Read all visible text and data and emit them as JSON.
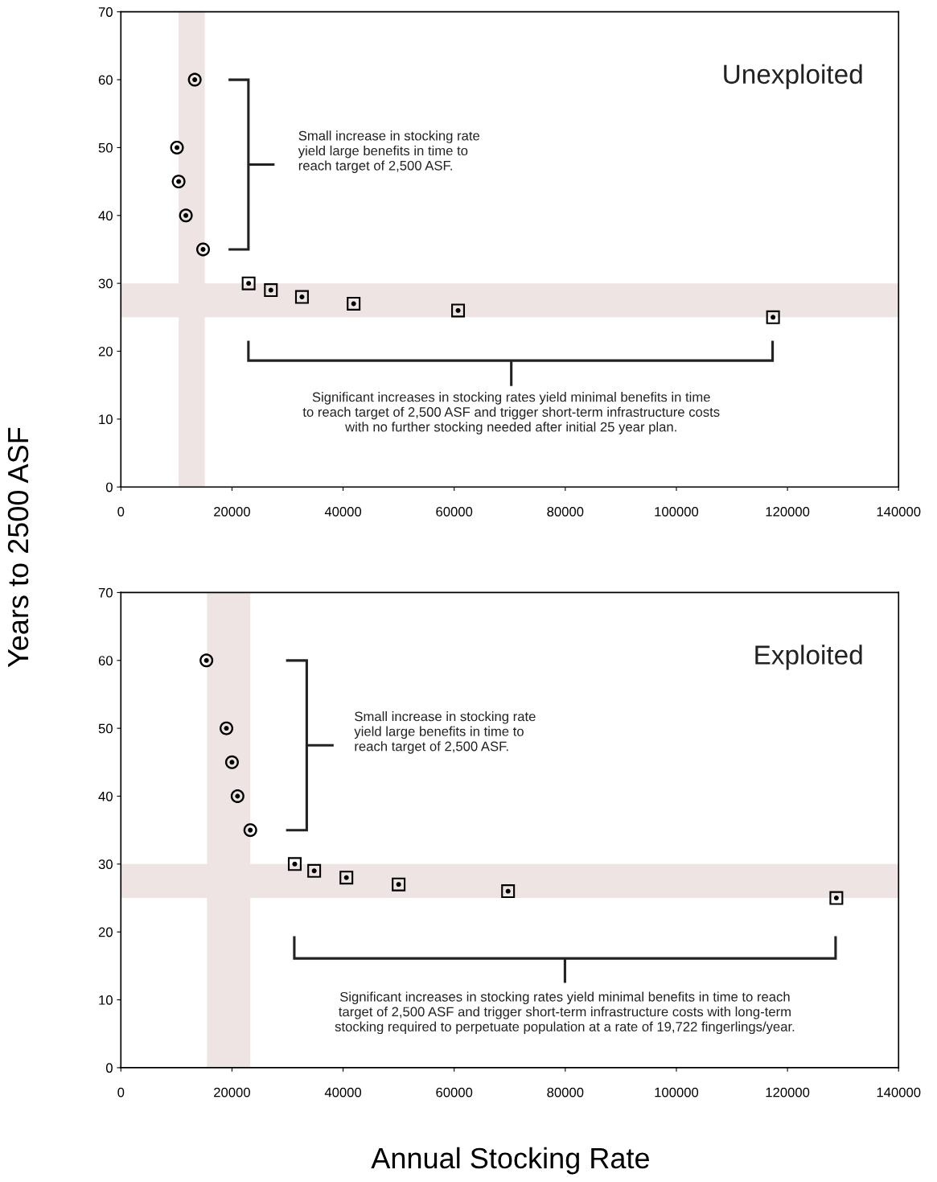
{
  "chart_data": [
    {
      "type": "scatter",
      "ylabel": "Years to 2500 ASF",
      "xlim": [
        0,
        140000
      ],
      "ylim": [
        0,
        70
      ],
      "xticks": [
        0,
        20000,
        40000,
        60000,
        80000,
        100000,
        120000,
        140000
      ],
      "yticks": [
        0,
        10,
        20,
        30,
        40,
        50,
        60,
        70
      ],
      "grid": false,
      "legend": false,
      "series": [
        {
          "color": "#000000",
          "marker": "circle",
          "x": [
            13300,
            10100,
            10400,
            11700,
            14800
          ],
          "values": [
            60,
            50,
            45,
            40,
            35
          ]
        },
        {
          "color": "#000000",
          "marker": "square",
          "x": [
            23000,
            27000,
            32600,
            41900,
            60700,
            117400
          ],
          "values": [
            30,
            29,
            28,
            27,
            26,
            25
          ]
        }
      ],
      "bands": [
        {
          "axis": "x",
          "from": 10400,
          "to": 15100,
          "color": "#efe4e4"
        },
        {
          "axis": "y",
          "from": 25,
          "to": 30,
          "color": "#efe4e4"
        }
      ],
      "annotations": [
        "Unexploited",
        "Small increase in stocking rate\nyield large benefits in time to\nreach target of 2,500 ASF.",
        "Significant increases in stocking rates yield minimal benefits in time\nto reach target of 2,500 ASF and trigger short-term infrastructure costs\nwith no further stocking needed after initial 25 year plan."
      ]
    },
    {
      "type": "scatter",
      "xlabel": "Annual Stocking Rate",
      "xlim": [
        0,
        140000
      ],
      "ylim": [
        0,
        70
      ],
      "xticks": [
        0,
        20000,
        40000,
        60000,
        80000,
        100000,
        120000,
        140000
      ],
      "yticks": [
        0,
        10,
        20,
        30,
        40,
        50,
        60,
        70
      ],
      "grid": false,
      "legend": false,
      "series": [
        {
          "color": "#000000",
          "marker": "circle",
          "x": [
            15400,
            19000,
            20000,
            21000,
            23300
          ],
          "values": [
            60,
            50,
            45,
            40,
            35
          ]
        },
        {
          "color": "#000000",
          "marker": "square",
          "x": [
            31300,
            34800,
            40600,
            50000,
            69700,
            128800
          ],
          "values": [
            30,
            29,
            28,
            27,
            26,
            25
          ]
        }
      ],
      "bands": [
        {
          "axis": "x",
          "from": 15500,
          "to": 23300,
          "color": "#efe4e4"
        },
        {
          "axis": "y",
          "from": 25,
          "to": 30,
          "color": "#efe4e4"
        }
      ],
      "annotations": [
        "Exploited",
        "Small increase in stocking rate\nyield large benefits in time to\nreach target of 2,500 ASF.",
        "Significant increases in stocking rates yield minimal benefits in time to reach\ntarget of 2,500 ASF and trigger short-term infrastructure costs with long-term\nstocking required to perpetuate population at a rate of 19,722 fingerlings/year."
      ]
    }
  ]
}
